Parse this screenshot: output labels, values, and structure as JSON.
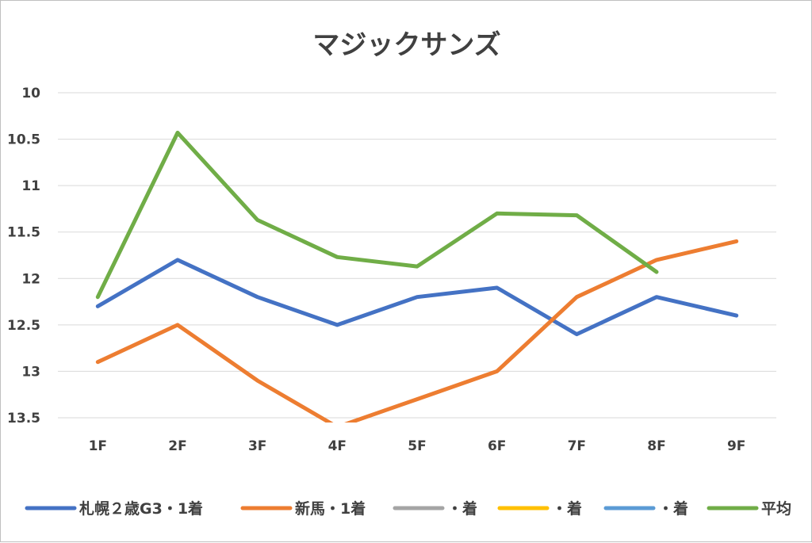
{
  "chart_data": {
    "type": "line",
    "title": "マジックサンズ",
    "xlabel": "",
    "ylabel": "",
    "categories": [
      "1F",
      "2F",
      "3F",
      "4F",
      "5F",
      "6F",
      "7F",
      "8F",
      "9F"
    ],
    "y_ticks": [
      "10",
      "10.5",
      "11",
      "11.5",
      "12",
      "12.5",
      "13",
      "13.5"
    ],
    "ylim": [
      10,
      13.5
    ],
    "y_axis_reversed": true,
    "grid": true,
    "legend_position": "bottom",
    "series": [
      {
        "name": "札幌２歳G3・1着",
        "color": "#4472c4",
        "values": [
          12.3,
          11.8,
          12.2,
          12.5,
          12.2,
          12.1,
          12.6,
          12.2,
          12.4
        ]
      },
      {
        "name": "新馬・1着",
        "color": "#ed7d31",
        "values": [
          12.9,
          12.5,
          13.1,
          13.6,
          13.3,
          13.0,
          12.2,
          11.8,
          11.6
        ]
      },
      {
        "name": "・着",
        "color": "#a5a5a5",
        "values": [
          null,
          null,
          null,
          null,
          null,
          null,
          null,
          null,
          null
        ]
      },
      {
        "name": "・着",
        "color": "#ffc000",
        "values": [
          null,
          null,
          null,
          null,
          null,
          null,
          null,
          null,
          null
        ]
      },
      {
        "name": "・着",
        "color": "#5b9bd5",
        "values": [
          null,
          null,
          null,
          null,
          null,
          null,
          null,
          null,
          null
        ]
      },
      {
        "name": "平均",
        "color": "#70ad47",
        "values": [
          12.2,
          10.43,
          11.37,
          11.77,
          11.87,
          11.3,
          11.32,
          11.93,
          null
        ]
      }
    ]
  }
}
